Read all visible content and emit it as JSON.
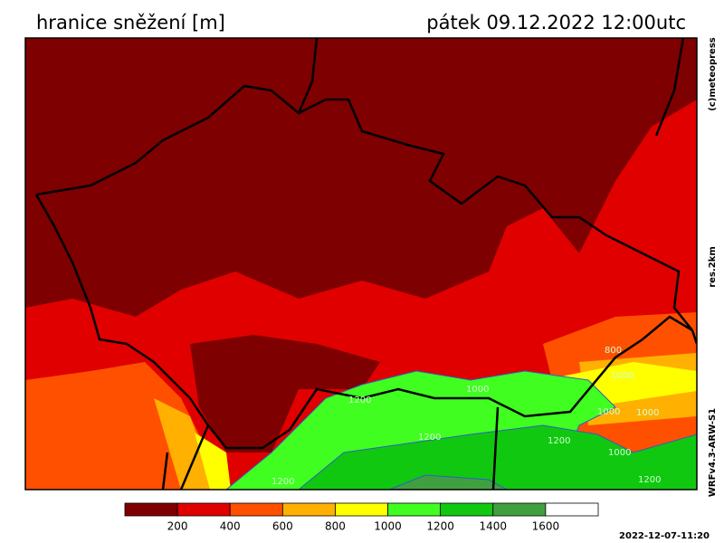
{
  "header": {
    "title": "hranice sněžení [m]",
    "date": "pátek 09.12.2022 12:00utc"
  },
  "side_labels": [
    "(c)meteopress",
    "res.2km",
    "WRFv4.3-ARW-S1"
  ],
  "map": {
    "contour_labels": [
      "1000",
      "800",
      "1000",
      "1000",
      "1200",
      "1200",
      "1000",
      "1000",
      "1200",
      "1200",
      "1200"
    ]
  },
  "legend": {
    "colors": [
      "#7f0000",
      "#e00000",
      "#ff5000",
      "#ffb000",
      "#ffff00",
      "#40ff20",
      "#10c810",
      "#40a040",
      "#ffffff"
    ],
    "labels": [
      200,
      400,
      600,
      800,
      1000,
      1200,
      1400,
      1600
    ]
  },
  "footer": {
    "timestamp": "2022-12-07-11:20"
  }
}
